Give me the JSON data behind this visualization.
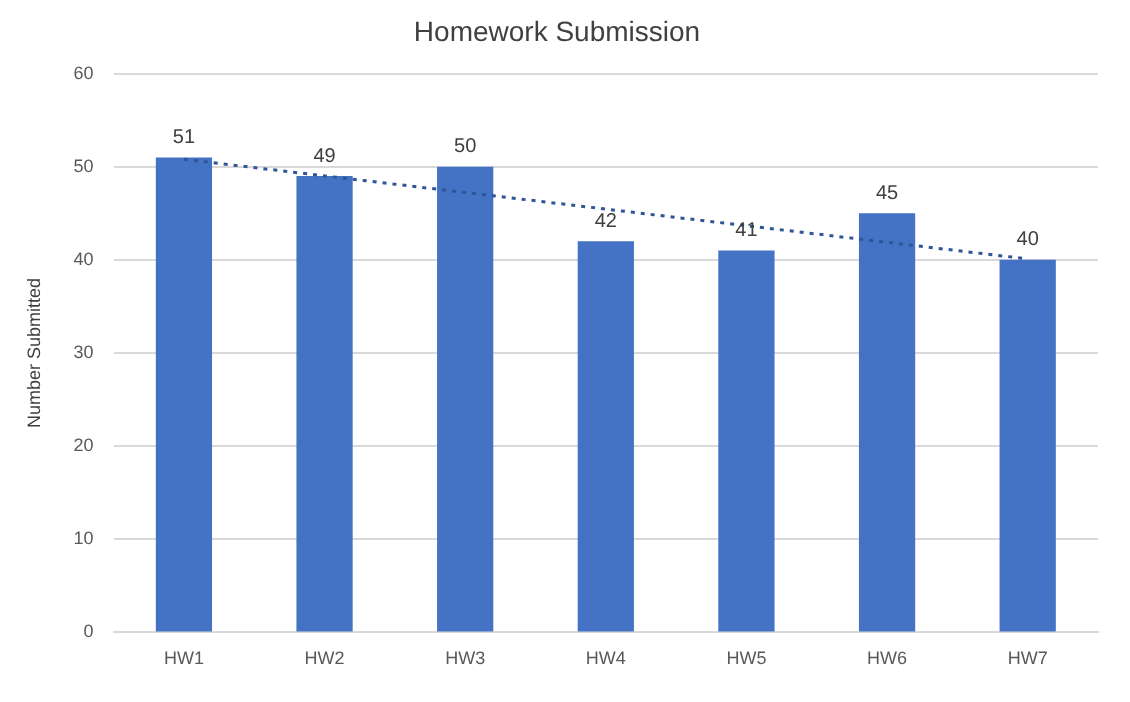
{
  "chart_data": {
    "type": "bar",
    "title": "Homework Submission",
    "ylabel": "Number Submitted",
    "categories": [
      "HW1",
      "HW2",
      "HW3",
      "HW4",
      "HW5",
      "HW6",
      "HW7"
    ],
    "series": [
      {
        "color": "#4472c4",
        "values": [
          51,
          49,
          50,
          42,
          41,
          45,
          40
        ],
        "value_labels": [
          "51",
          "49",
          "50",
          "42",
          "41",
          "45",
          "40"
        ]
      },
      {
        "type": "line",
        "color": "#2f5597",
        "line_style": "dotted",
        "marker": "none",
        "x": [
          "HW1",
          "HW7"
        ],
        "values": [
          50.8,
          40.1
        ]
      }
    ],
    "ylim": [
      0,
      60
    ],
    "yticks": [
      0,
      10,
      20,
      30,
      40,
      50,
      60
    ],
    "grid": "y",
    "legend": false
  }
}
